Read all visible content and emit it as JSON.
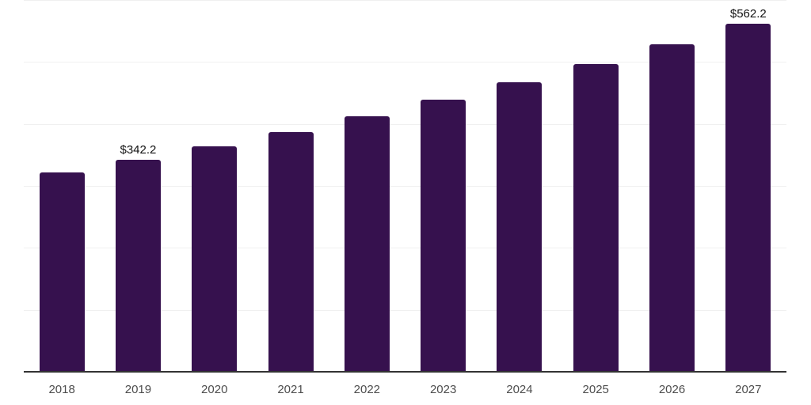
{
  "chart_data": {
    "type": "bar",
    "title": "",
    "xlabel": "",
    "ylabel": "",
    "categories": [
      "2018",
      "2019",
      "2020",
      "2021",
      "2022",
      "2023",
      "2024",
      "2025",
      "2026",
      "2027"
    ],
    "values": [
      321.6,
      342.2,
      364.1,
      387.4,
      412.2,
      438.6,
      466.7,
      496.5,
      528.3,
      562.2
    ],
    "value_labels": [
      "",
      "$342.2",
      "",
      "",
      "",
      "",
      "",
      "",
      "",
      "$562.2"
    ],
    "labeled_points": [
      {
        "category": "2019",
        "label": "$342.2"
      },
      {
        "category": "2027",
        "label": "$562.2"
      }
    ],
    "ylim": [
      0,
      600
    ],
    "gridline_step": 100,
    "grid": "horizontal",
    "y_axis_tick_labels": "none",
    "legend": "none",
    "colors": {
      "bar": "#36114e",
      "gridline": "#f0f0f0",
      "axis_line": "#333333",
      "tick_label": "#4d4d4d",
      "value_label": "#111111",
      "background": "#ffffff"
    }
  }
}
